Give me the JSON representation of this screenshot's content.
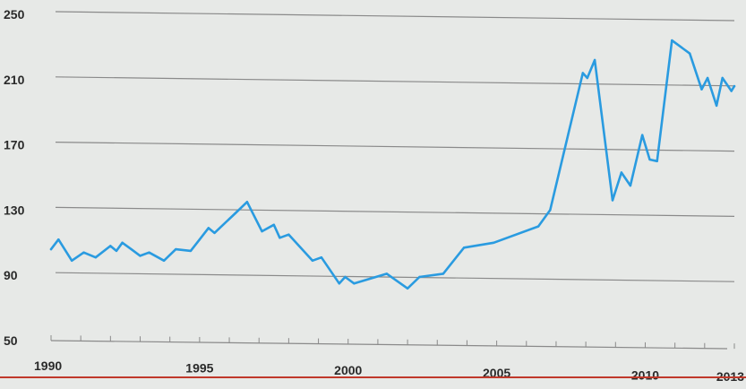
{
  "chart_data": {
    "type": "line",
    "title": "",
    "xlabel": "",
    "ylabel": "",
    "xlim": [
      1990,
      2013
    ],
    "ylim": [
      50,
      250
    ],
    "y_ticks": [
      50,
      90,
      130,
      170,
      210,
      250
    ],
    "x_ticks": [
      1990,
      1995,
      2000,
      2005,
      2010,
      2013
    ],
    "grid": true,
    "legend": "none",
    "colors": {
      "line": "#2a9be0",
      "grid": "#8a8a8a",
      "text": "#2a2a2a",
      "bottom_rule": "#c0392b"
    },
    "series": [
      {
        "points": [
          [
            1990.0,
            106
          ],
          [
            1990.25,
            112
          ],
          [
            1990.7,
            99
          ],
          [
            1991.1,
            104
          ],
          [
            1991.5,
            101
          ],
          [
            1992.0,
            108
          ],
          [
            1992.2,
            105
          ],
          [
            1992.4,
            110
          ],
          [
            1992.7,
            106
          ],
          [
            1993.0,
            102
          ],
          [
            1993.3,
            104
          ],
          [
            1993.8,
            99
          ],
          [
            1994.2,
            106
          ],
          [
            1994.7,
            105
          ],
          [
            1995.0,
            112
          ],
          [
            1995.3,
            119
          ],
          [
            1995.5,
            116
          ],
          [
            1996.2,
            128
          ],
          [
            1996.6,
            135
          ],
          [
            1997.1,
            117
          ],
          [
            1997.5,
            121
          ],
          [
            1997.7,
            113
          ],
          [
            1998.0,
            115
          ],
          [
            1998.8,
            99
          ],
          [
            1999.1,
            101
          ],
          [
            1999.7,
            85
          ],
          [
            1999.9,
            89
          ],
          [
            2000.2,
            85
          ],
          [
            2001.3,
            91
          ],
          [
            2002.0,
            82
          ],
          [
            2002.4,
            89
          ],
          [
            2003.2,
            91
          ],
          [
            2003.9,
            107
          ],
          [
            2004.9,
            110
          ],
          [
            2006.4,
            120
          ],
          [
            2006.8,
            130
          ],
          [
            2007.9,
            214
          ],
          [
            2008.05,
            211
          ],
          [
            2008.3,
            222
          ],
          [
            2008.9,
            136
          ],
          [
            2009.2,
            153
          ],
          [
            2009.5,
            145
          ],
          [
            2009.9,
            176
          ],
          [
            2010.15,
            161
          ],
          [
            2010.4,
            160
          ],
          [
            2010.9,
            234
          ],
          [
            2011.5,
            226
          ],
          [
            2011.9,
            204
          ],
          [
            2012.1,
            211
          ],
          [
            2012.4,
            194
          ],
          [
            2012.6,
            211
          ],
          [
            2012.9,
            203
          ],
          [
            2013.0,
            206
          ]
        ]
      }
    ]
  }
}
